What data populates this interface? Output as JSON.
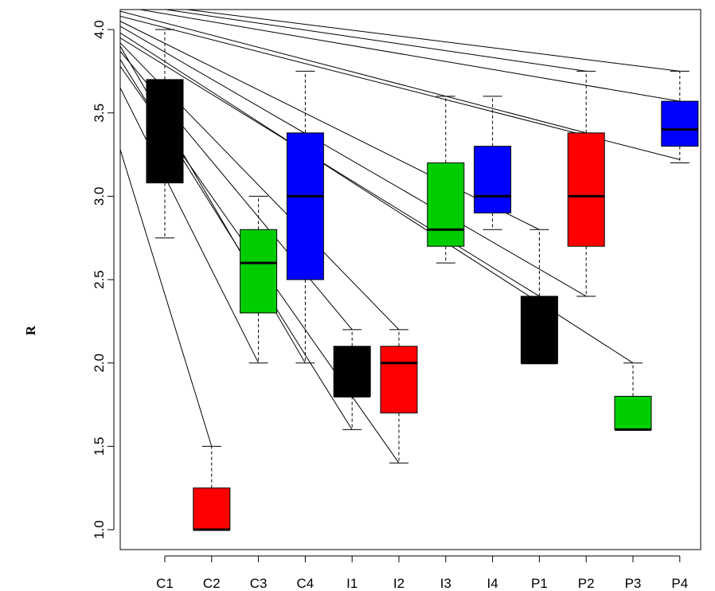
{
  "chart_data": {
    "type": "boxplot",
    "ylabel": "R",
    "ylim": [
      1.0,
      4.0
    ],
    "yticks": [
      "1.0",
      "1.5",
      "2.0",
      "2.5",
      "3.0",
      "3.5",
      "4.0"
    ],
    "categories": [
      "C1",
      "C2",
      "C3",
      "C4",
      "I1",
      "I2",
      "I3",
      "I4",
      "P1",
      "P2",
      "P3",
      "P4"
    ],
    "colors": [
      "#000000",
      "#ff0000",
      "#00cd00",
      "#0000ff",
      "#000000",
      "#ff0000",
      "#00cd00",
      "#0000ff",
      "#000000",
      "#ff0000",
      "#00cd00",
      "#0000ff"
    ],
    "boxes": [
      {
        "min": 2.75,
        "q1": 3.08,
        "median": 3.4,
        "q3": 3.7,
        "max": 4.0
      },
      {
        "min": 1.0,
        "q1": 1.0,
        "median": 1.0,
        "q3": 1.25,
        "max": 1.5
      },
      {
        "min": 2.0,
        "q1": 2.3,
        "median": 2.6,
        "q3": 2.8,
        "max": 3.0
      },
      {
        "min": 2.0,
        "q1": 2.5,
        "median": 3.0,
        "q3": 3.38,
        "max": 3.75
      },
      {
        "min": 1.6,
        "q1": 1.8,
        "median": 1.8,
        "q3": 2.1,
        "max": 2.2
      },
      {
        "min": 1.4,
        "q1": 1.7,
        "median": 2.0,
        "q3": 2.1,
        "max": 2.2
      },
      {
        "min": 2.6,
        "q1": 2.7,
        "median": 2.8,
        "q3": 3.2,
        "max": 3.6
      },
      {
        "min": 2.8,
        "q1": 2.9,
        "median": 3.0,
        "q3": 3.3,
        "max": 3.6
      },
      {
        "min": 2.0,
        "q1": 2.0,
        "median": 2.0,
        "q3": 2.4,
        "max": 2.8
      },
      {
        "min": 2.4,
        "q1": 2.7,
        "median": 3.0,
        "q3": 3.38,
        "max": 3.75
      },
      {
        "min": 1.6,
        "q1": 1.6,
        "median": 1.6,
        "q3": 1.8,
        "max": 2.0
      },
      {
        "min": 3.2,
        "q1": 3.3,
        "median": 3.4,
        "q3": 3.57,
        "max": 3.75
      }
    ],
    "connector_lines": [
      {
        "y_start": 3.28,
        "to": "C2",
        "y_end": 1.5
      },
      {
        "y_start": 3.65,
        "to": "C3",
        "y_end": 2.0
      },
      {
        "y_start": 3.78,
        "to": "I2",
        "y_end": 1.4
      },
      {
        "y_start": 3.82,
        "to": "I1",
        "y_end": 1.6
      },
      {
        "y_start": 3.87,
        "to": "I1",
        "y_end": 2.2
      },
      {
        "y_start": 3.92,
        "to": "I2",
        "y_end": 2.2
      },
      {
        "y_start": 3.95,
        "to": "P1",
        "y_end": 2.4
      },
      {
        "y_start": 3.98,
        "to": "P3",
        "y_end": 2.0
      },
      {
        "y_start": 4.02,
        "to": "P2",
        "y_end": 2.4
      },
      {
        "y_start": 4.05,
        "to": "P1",
        "y_end": 2.8
      },
      {
        "y_start": 4.08,
        "to": "P4",
        "y_end": 3.22
      },
      {
        "y_start": 4.11,
        "to": "P2",
        "y_end": 3.38
      },
      {
        "y_start": 4.14,
        "to": "P4",
        "y_end": 3.57
      },
      {
        "y_start": 4.16,
        "to": "P2",
        "y_end": 3.75
      },
      {
        "y_start": 4.17,
        "to": "P4",
        "y_end": 3.75
      },
      {
        "y_start": 3.9,
        "to": "C4",
        "y_end": 2.0
      }
    ]
  }
}
